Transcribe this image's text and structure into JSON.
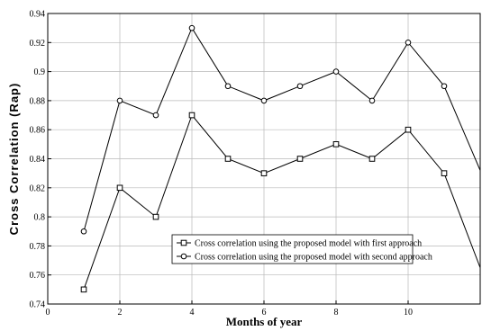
{
  "chart_data": {
    "type": "line",
    "title": "",
    "xlabel": "Months of year",
    "ylabel": "Cross Correlation (Rap)",
    "xlim": [
      0,
      12
    ],
    "ylim": [
      0.74,
      0.94
    ],
    "grid": true,
    "legend_position": "bottom-right",
    "x_ticks": [
      "0",
      "2",
      "4",
      "6",
      "8",
      "10"
    ],
    "y_ticks": [
      "0.74",
      "0.76",
      "0.78",
      "0.8",
      "0.82",
      "0.84",
      "0.86",
      "0.88",
      "0.9",
      "0.92",
      "0.94"
    ],
    "x": [
      1,
      2,
      3,
      4,
      5,
      6,
      7,
      8,
      9,
      10,
      11,
      12
    ],
    "series": [
      {
        "name": "Cross correlation using  the proposed model with first approach",
        "marker": "square",
        "values": [
          0.75,
          0.82,
          0.8,
          0.87,
          0.84,
          0.83,
          0.84,
          0.85,
          0.84,
          0.86,
          0.83,
          0.765
        ]
      },
      {
        "name": "Cross correlation using  the proposed model with second approach",
        "marker": "circle",
        "values": [
          0.79,
          0.88,
          0.87,
          0.93,
          0.89,
          0.88,
          0.89,
          0.9,
          0.88,
          0.92,
          0.89,
          0.832
        ]
      }
    ],
    "markers_through_x": 11
  }
}
